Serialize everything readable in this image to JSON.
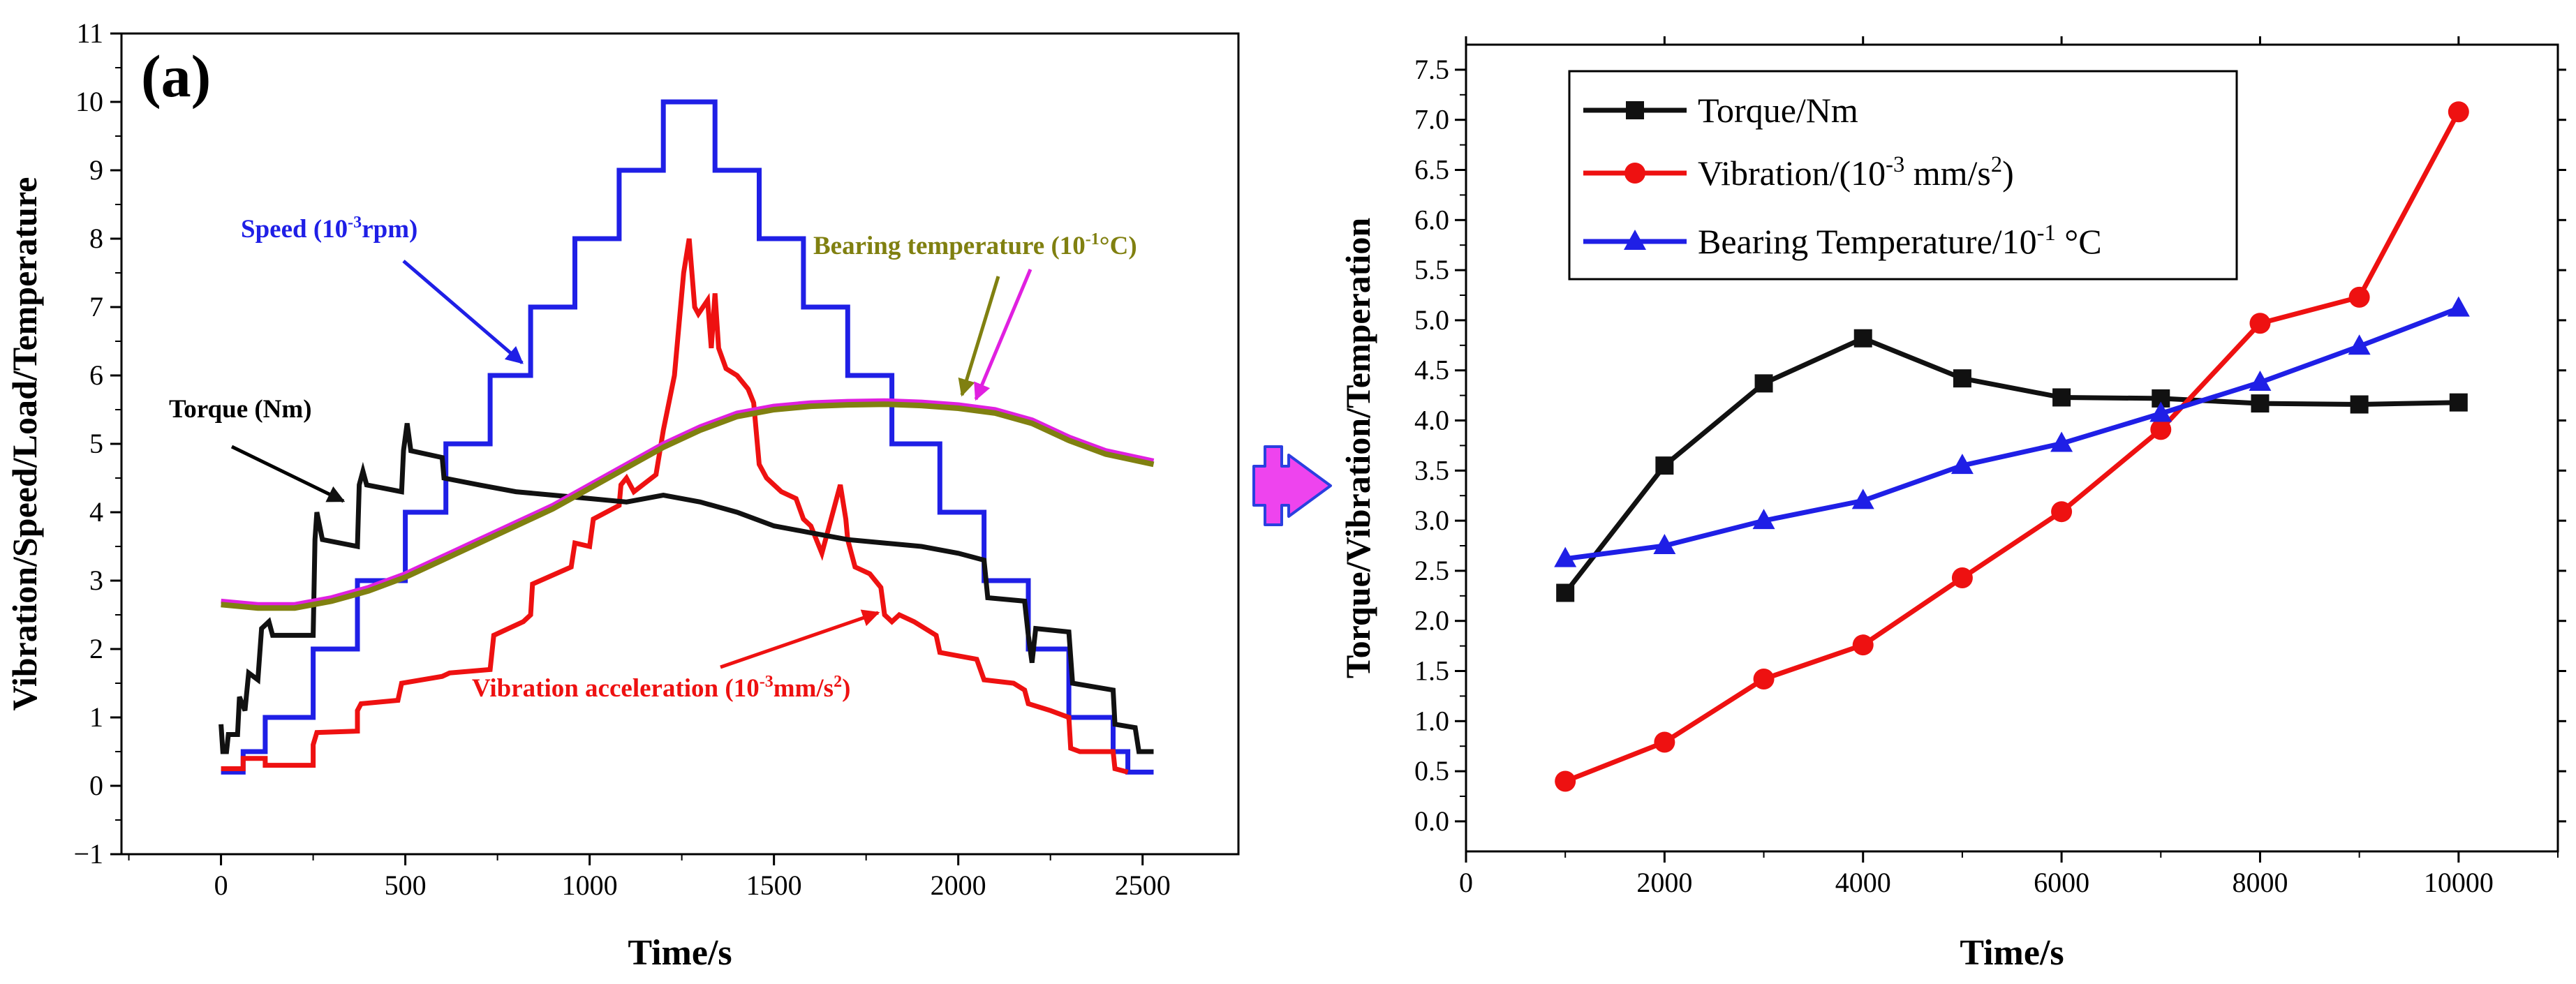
{
  "figure": {
    "colors": {
      "speed": "#1f1fe6",
      "vibration": "#ee1111",
      "torque": "#111111",
      "temperature": "#808010",
      "temperature_alt": "#e020e0",
      "arrow_fill": "#ee44ee",
      "arrow_edge": "#2a3fe0"
    }
  },
  "chart_data": [
    {
      "type": "line",
      "panel_label": "(a)",
      "xlabel": "Time/s",
      "ylabel": "Vibration/Speed/Load/Temperature",
      "xlim": [
        -270,
        2760
      ],
      "ylim": [
        -1,
        11
      ],
      "xticks": [
        0,
        500,
        1000,
        1500,
        2000,
        2500
      ],
      "yticks": [
        -1,
        0,
        1,
        2,
        3,
        4,
        5,
        6,
        7,
        8,
        9,
        10,
        11
      ],
      "annotations": {
        "speed": {
          "text": "Speed (10",
          "sup": "-3",
          "tail": "rpm)"
        },
        "torque": {
          "text": "Torque (Nm)"
        },
        "temperature": {
          "text": "Bearing temperature (10",
          "sup": "-1",
          "tail": "°C)"
        },
        "vibration": {
          "text": "Vibration acceleration (10",
          "sup": "-3",
          "tail": "mm/s",
          "sup2": "2",
          "tail2": ")"
        }
      },
      "series": [
        {
          "name": "Speed",
          "kind": "step",
          "points": [
            [
              0,
              0.2
            ],
            [
              60,
              0.2
            ],
            [
              60,
              0.5
            ],
            [
              120,
              0.5
            ],
            [
              120,
              1
            ],
            [
              250,
              1
            ],
            [
              250,
              2
            ],
            [
              370,
              2
            ],
            [
              370,
              3
            ],
            [
              500,
              3
            ],
            [
              500,
              4
            ],
            [
              610,
              4
            ],
            [
              610,
              5
            ],
            [
              730,
              5
            ],
            [
              730,
              6
            ],
            [
              840,
              6
            ],
            [
              840,
              7
            ],
            [
              960,
              7
            ],
            [
              960,
              8
            ],
            [
              1080,
              8
            ],
            [
              1080,
              9
            ],
            [
              1200,
              9
            ],
            [
              1200,
              10
            ],
            [
              1340,
              10
            ],
            [
              1340,
              9
            ],
            [
              1460,
              9
            ],
            [
              1460,
              8
            ],
            [
              1580,
              8
            ],
            [
              1580,
              7
            ],
            [
              1700,
              7
            ],
            [
              1700,
              6
            ],
            [
              1820,
              6
            ],
            [
              1820,
              5
            ],
            [
              1950,
              5
            ],
            [
              1950,
              4
            ],
            [
              2070,
              4
            ],
            [
              2070,
              3
            ],
            [
              2190,
              3
            ],
            [
              2190,
              2
            ],
            [
              2300,
              2
            ],
            [
              2300,
              1
            ],
            [
              2420,
              1
            ],
            [
              2420,
              0.5
            ],
            [
              2460,
              0.5
            ],
            [
              2460,
              0.2
            ],
            [
              2530,
              0.2
            ]
          ]
        },
        {
          "name": "Vibration acceleration",
          "kind": "line",
          "points": [
            [
              0,
              0.25
            ],
            [
              60,
              0.25
            ],
            [
              60,
              0.4
            ],
            [
              120,
              0.4
            ],
            [
              120,
              0.3
            ],
            [
              250,
              0.3
            ],
            [
              250,
              0.6
            ],
            [
              260,
              0.78
            ],
            [
              370,
              0.8
            ],
            [
              370,
              1.1
            ],
            [
              380,
              1.2
            ],
            [
              480,
              1.25
            ],
            [
              490,
              1.5
            ],
            [
              600,
              1.6
            ],
            [
              620,
              1.65
            ],
            [
              730,
              1.7
            ],
            [
              740,
              2.2
            ],
            [
              820,
              2.4
            ],
            [
              840,
              2.5
            ],
            [
              845,
              2.95
            ],
            [
              950,
              3.2
            ],
            [
              960,
              3.55
            ],
            [
              1000,
              3.5
            ],
            [
              1010,
              3.9
            ],
            [
              1080,
              4.1
            ],
            [
              1085,
              4.4
            ],
            [
              1100,
              4.5
            ],
            [
              1120,
              4.3
            ],
            [
              1180,
              4.55
            ],
            [
              1200,
              5.2
            ],
            [
              1230,
              6
            ],
            [
              1255,
              7.5
            ],
            [
              1270,
              8
            ],
            [
              1285,
              7
            ],
            [
              1295,
              6.9
            ],
            [
              1320,
              7.1
            ],
            [
              1330,
              6.4
            ],
            [
              1340,
              7.2
            ],
            [
              1345,
              6.8
            ],
            [
              1350,
              6.4
            ],
            [
              1370,
              6.1
            ],
            [
              1400,
              6
            ],
            [
              1430,
              5.8
            ],
            [
              1445,
              5.6
            ],
            [
              1460,
              4.7
            ],
            [
              1480,
              4.5
            ],
            [
              1520,
              4.3
            ],
            [
              1560,
              4.2
            ],
            [
              1580,
              3.9
            ],
            [
              1600,
              3.8
            ],
            [
              1630,
              3.4
            ],
            [
              1670,
              4.2
            ],
            [
              1680,
              4.4
            ],
            [
              1695,
              3.9
            ],
            [
              1700,
              3.6
            ],
            [
              1720,
              3.2
            ],
            [
              1760,
              3.1
            ],
            [
              1790,
              2.9
            ],
            [
              1800,
              2.5
            ],
            [
              1820,
              2.4
            ],
            [
              1840,
              2.5
            ],
            [
              1880,
              2.4
            ],
            [
              1940,
              2.2
            ],
            [
              1950,
              1.95
            ],
            [
              2000,
              1.9
            ],
            [
              2050,
              1.85
            ],
            [
              2070,
              1.55
            ],
            [
              2150,
              1.5
            ],
            [
              2180,
              1.4
            ],
            [
              2190,
              1.2
            ],
            [
              2250,
              1.1
            ],
            [
              2300,
              1
            ],
            [
              2305,
              0.55
            ],
            [
              2330,
              0.5
            ],
            [
              2420,
              0.5
            ],
            [
              2425,
              0.25
            ],
            [
              2460,
              0.2
            ]
          ]
        },
        {
          "name": "Torque",
          "kind": "line",
          "points": [
            [
              0,
              0.9
            ],
            [
              5,
              0.5
            ],
            [
              15,
              0.5
            ],
            [
              20,
              0.75
            ],
            [
              45,
              0.75
            ],
            [
              50,
              1.3
            ],
            [
              65,
              1.1
            ],
            [
              75,
              1.65
            ],
            [
              100,
              1.55
            ],
            [
              110,
              2.3
            ],
            [
              130,
              2.4
            ],
            [
              140,
              2.2
            ],
            [
              250,
              2.2
            ],
            [
              255,
              3.6
            ],
            [
              260,
              4
            ],
            [
              275,
              3.6
            ],
            [
              370,
              3.5
            ],
            [
              375,
              4.4
            ],
            [
              385,
              4.6
            ],
            [
              395,
              4.4
            ],
            [
              490,
              4.3
            ],
            [
              495,
              4.9
            ],
            [
              505,
              5.3
            ],
            [
              515,
              4.9
            ],
            [
              600,
              4.8
            ],
            [
              605,
              4.5
            ],
            [
              700,
              4.4
            ],
            [
              800,
              4.3
            ],
            [
              900,
              4.25
            ],
            [
              1000,
              4.2
            ],
            [
              1100,
              4.15
            ],
            [
              1200,
              4.25
            ],
            [
              1300,
              4.15
            ],
            [
              1400,
              4
            ],
            [
              1500,
              3.8
            ],
            [
              1600,
              3.7
            ],
            [
              1700,
              3.6
            ],
            [
              1800,
              3.55
            ],
            [
              1900,
              3.5
            ],
            [
              2000,
              3.4
            ],
            [
              2070,
              3.3
            ],
            [
              2080,
              2.75
            ],
            [
              2180,
              2.7
            ],
            [
              2190,
              2.2
            ],
            [
              2200,
              1.8
            ],
            [
              2210,
              2.3
            ],
            [
              2300,
              2.25
            ],
            [
              2310,
              1.5
            ],
            [
              2420,
              1.4
            ],
            [
              2425,
              0.9
            ],
            [
              2480,
              0.85
            ],
            [
              2490,
              0.5
            ],
            [
              2530,
              0.5
            ]
          ]
        },
        {
          "name": "Bearing temperature",
          "kind": "line",
          "points": [
            [
              0,
              2.65
            ],
            [
              100,
              2.6
            ],
            [
              200,
              2.6
            ],
            [
              300,
              2.7
            ],
            [
              400,
              2.85
            ],
            [
              500,
              3.05
            ],
            [
              600,
              3.3
            ],
            [
              700,
              3.55
            ],
            [
              800,
              3.8
            ],
            [
              900,
              4.05
            ],
            [
              1000,
              4.35
            ],
            [
              1100,
              4.65
            ],
            [
              1200,
              4.95
            ],
            [
              1300,
              5.2
            ],
            [
              1400,
              5.4
            ],
            [
              1500,
              5.5
            ],
            [
              1600,
              5.55
            ],
            [
              1700,
              5.57
            ],
            [
              1800,
              5.58
            ],
            [
              1900,
              5.56
            ],
            [
              2000,
              5.52
            ],
            [
              2100,
              5.45
            ],
            [
              2200,
              5.3
            ],
            [
              2300,
              5.05
            ],
            [
              2400,
              4.85
            ],
            [
              2530,
              4.7
            ]
          ]
        }
      ]
    },
    {
      "type": "line",
      "xlabel": "Time/s",
      "ylabel": "Torque/Vibration/Temperation",
      "xlim": [
        0,
        11000
      ],
      "ylim": [
        -0.3,
        7.75
      ],
      "xticks": [
        0,
        2000,
        4000,
        6000,
        8000,
        10000
      ],
      "yticks": [
        0.0,
        0.5,
        1.0,
        1.5,
        2.0,
        2.5,
        3.0,
        3.5,
        4.0,
        4.5,
        5.0,
        5.5,
        6.0,
        6.5,
        7.0,
        7.5
      ],
      "ytick_labels": [
        "0.0",
        "0.5",
        "1.0",
        "1.5",
        "2.0",
        "2.5",
        "3.0",
        "3.5",
        "4.0",
        "4.5",
        "5.0",
        "5.5",
        "6.0",
        "6.5",
        "7.0",
        "7.5"
      ],
      "legend": {
        "placement": "top-left",
        "entries": [
          {
            "text": "Torque/Nm"
          },
          {
            "text": "Vibration/(10",
            "sup": "-3",
            "tail": " mm/s",
            "sup2": "2",
            "tail2": ")"
          },
          {
            "text": "Bearing Temperature/10",
            "sup": "-1",
            "tail": " °C"
          }
        ]
      },
      "x": [
        1000,
        2000,
        3000,
        4000,
        5000,
        6000,
        7000,
        8000,
        9000,
        10000
      ],
      "series": [
        {
          "name": "Torque/Nm",
          "marker": "square",
          "values": [
            2.28,
            3.55,
            4.37,
            4.82,
            4.42,
            4.23,
            4.22,
            4.17,
            4.16,
            4.18
          ]
        },
        {
          "name": "Vibration",
          "marker": "circle",
          "values": [
            0.4,
            0.79,
            1.42,
            1.76,
            2.43,
            3.09,
            3.91,
            4.97,
            5.23,
            7.08
          ]
        },
        {
          "name": "Bearing Temperature",
          "marker": "triangle",
          "values": [
            2.62,
            2.75,
            3.0,
            3.2,
            3.55,
            3.77,
            4.07,
            4.38,
            4.74,
            5.12
          ]
        }
      ]
    }
  ]
}
